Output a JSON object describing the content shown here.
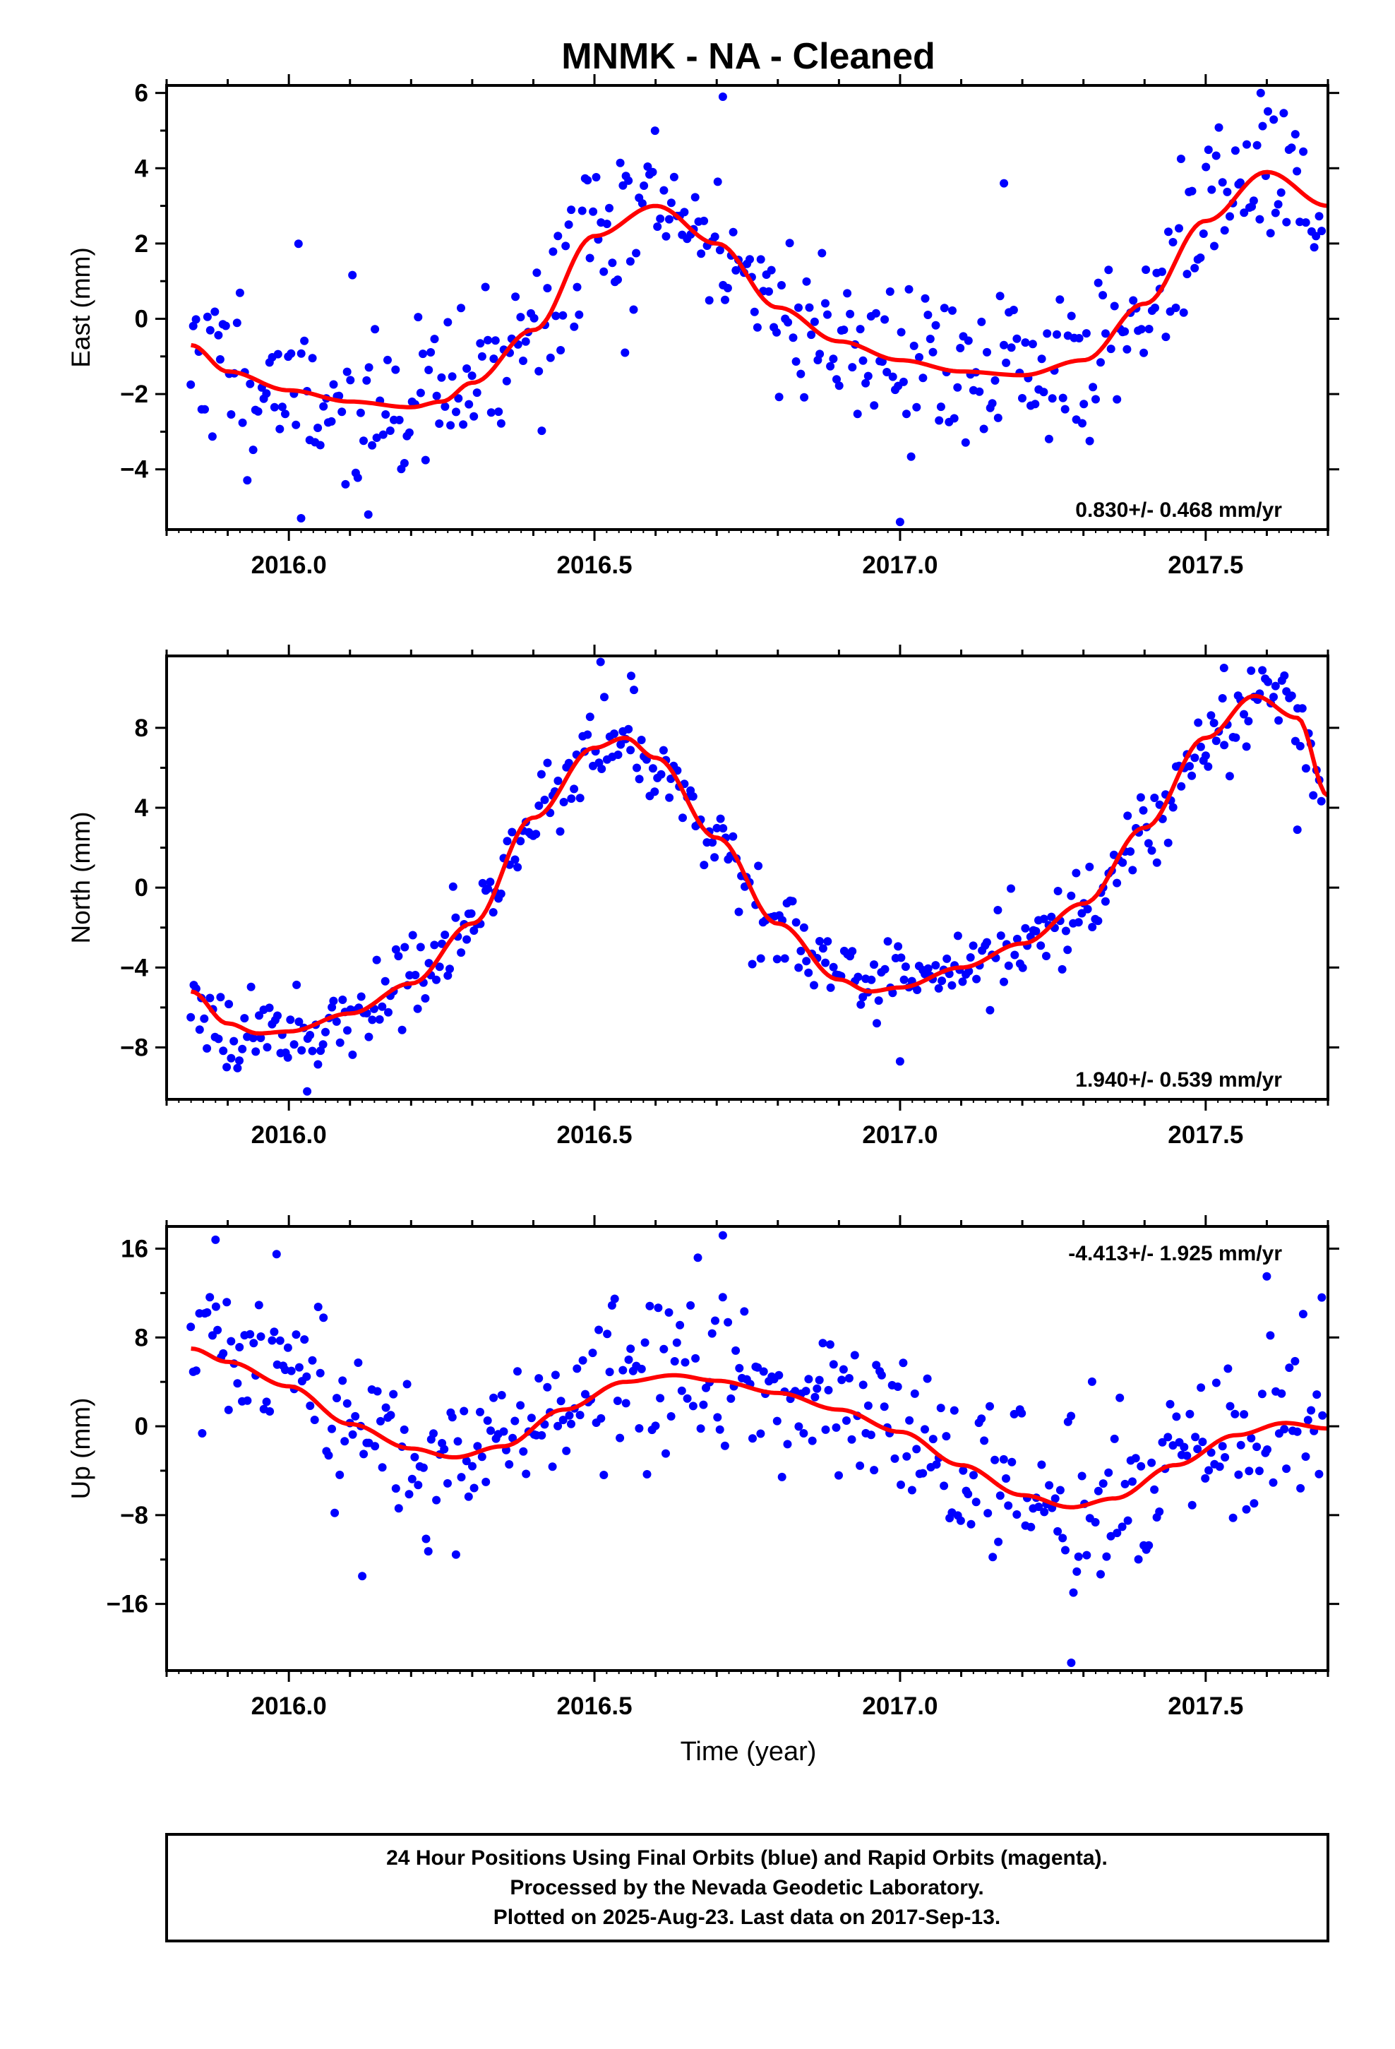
{
  "chart_data": {
    "type": "scatter",
    "title": "MNMK  - NA - Cleaned",
    "xlabel": "Time (year)",
    "xlim": [
      2015.8,
      2017.7
    ],
    "xticks": [
      "2016.0",
      "2016.5",
      "2017.0",
      "2017.5"
    ],
    "colors": {
      "data": "#0000ff",
      "fit": "#ff0000",
      "axis": "#000000"
    },
    "grid": false,
    "panels": [
      {
        "ylabel": "East (mm)",
        "ylim": [
          -5.6,
          6.2
        ],
        "yticks": [
          "6",
          "4",
          "2",
          "0",
          "−2",
          "−4"
        ],
        "rate": "0.830+/- 0.468 mm/yr",
        "rate_position": "bottom-right",
        "fit": {
          "x": [
            2015.84,
            2015.9,
            2016.0,
            2016.1,
            2016.2,
            2016.25,
            2016.3,
            2016.4,
            2016.5,
            2016.6,
            2016.7,
            2016.8,
            2016.9,
            2017.0,
            2017.1,
            2017.2,
            2017.3,
            2017.4,
            2017.5,
            2017.6,
            2017.7
          ],
          "y": [
            -0.7,
            -1.4,
            -1.9,
            -2.2,
            -2.35,
            -2.2,
            -1.7,
            -0.3,
            2.2,
            3.0,
            2.0,
            0.3,
            -0.6,
            -1.1,
            -1.4,
            -1.5,
            -1.1,
            0.4,
            2.6,
            3.9,
            3.0
          ]
        },
        "points": {
          "start": 2015.84,
          "end": 2017.69,
          "n": 420,
          "noise": 1.1,
          "seed": 11,
          "outliers": [
            [
              2016.71,
              5.9
            ],
            [
              2017.17,
              3.6
            ],
            [
              2017.59,
              6.0
            ],
            [
              2016.55,
              -0.9
            ],
            [
              2017.0,
              -5.4
            ],
            [
              2016.13,
              -5.2
            ],
            [
              2016.02,
              -5.3
            ]
          ]
        }
      },
      {
        "ylabel": "North (mm)",
        "ylim": [
          -10.6,
          11.6
        ],
        "yticks": [
          "8",
          "4",
          "0",
          "−4",
          "−8"
        ],
        "rate": "1.940+/- 0.539 mm/yr",
        "rate_position": "bottom-right",
        "fit": {
          "x": [
            2015.84,
            2015.9,
            2015.95,
            2016.0,
            2016.1,
            2016.2,
            2016.3,
            2016.4,
            2016.5,
            2016.55,
            2016.6,
            2016.7,
            2016.8,
            2016.9,
            2016.95,
            2017.0,
            2017.1,
            2017.2,
            2017.3,
            2017.4,
            2017.5,
            2017.58,
            2017.65,
            2017.7
          ],
          "y": [
            -5.2,
            -6.8,
            -7.3,
            -7.2,
            -6.3,
            -4.8,
            -1.8,
            3.5,
            7.0,
            7.5,
            6.5,
            2.5,
            -1.8,
            -4.6,
            -5.2,
            -5.0,
            -4.0,
            -2.8,
            -0.8,
            3.0,
            7.5,
            9.6,
            8.5,
            4.6
          ]
        },
        "points": {
          "start": 2015.84,
          "end": 2017.69,
          "n": 420,
          "noise": 1.0,
          "seed": 23,
          "outliers": [
            [
              2016.51,
              11.3
            ],
            [
              2016.56,
              10.6
            ],
            [
              2017.0,
              -8.7
            ],
            [
              2017.53,
              11.0
            ],
            [
              2017.65,
              2.9
            ],
            [
              2016.03,
              -10.2
            ]
          ]
        }
      },
      {
        "ylabel": "Up (mm)",
        "ylim": [
          -22.0,
          18.0
        ],
        "yticks": [
          "16",
          "8",
          "0",
          "−8",
          "−16"
        ],
        "rate": "-4.413+/- 1.925 mm/yr",
        "rate_position": "top-right",
        "fit": {
          "x": [
            2015.84,
            2015.9,
            2016.0,
            2016.1,
            2016.2,
            2016.27,
            2016.35,
            2016.45,
            2016.55,
            2016.63,
            2016.7,
            2016.8,
            2016.9,
            2017.0,
            2017.1,
            2017.2,
            2017.28,
            2017.35,
            2017.45,
            2017.55,
            2017.63,
            2017.7
          ],
          "y": [
            7.0,
            5.8,
            3.6,
            0.2,
            -2.0,
            -2.8,
            -1.8,
            1.5,
            4.0,
            4.6,
            4.1,
            3.0,
            1.5,
            -0.5,
            -3.5,
            -6.2,
            -7.3,
            -6.5,
            -3.5,
            -0.8,
            0.3,
            -0.2
          ]
        },
        "points": {
          "start": 2015.84,
          "end": 2017.69,
          "n": 420,
          "noise": 3.6,
          "seed": 37,
          "outliers": [
            [
              2016.71,
              17.2
            ],
            [
              2015.88,
              16.8
            ],
            [
              2017.28,
              -21.3
            ],
            [
              2016.12,
              -13.5
            ],
            [
              2017.6,
              13.5
            ],
            [
              2017.69,
              11.6
            ],
            [
              2015.98,
              15.5
            ]
          ]
        }
      }
    ]
  },
  "footer": {
    "line1": "24 Hour Positions Using Final Orbits (blue) and Rapid Orbits (magenta).",
    "line2": "Processed by the Nevada Geodetic Laboratory.",
    "line3": "Plotted on 2025-Aug-23. Last data on 2017-Sep-13."
  }
}
